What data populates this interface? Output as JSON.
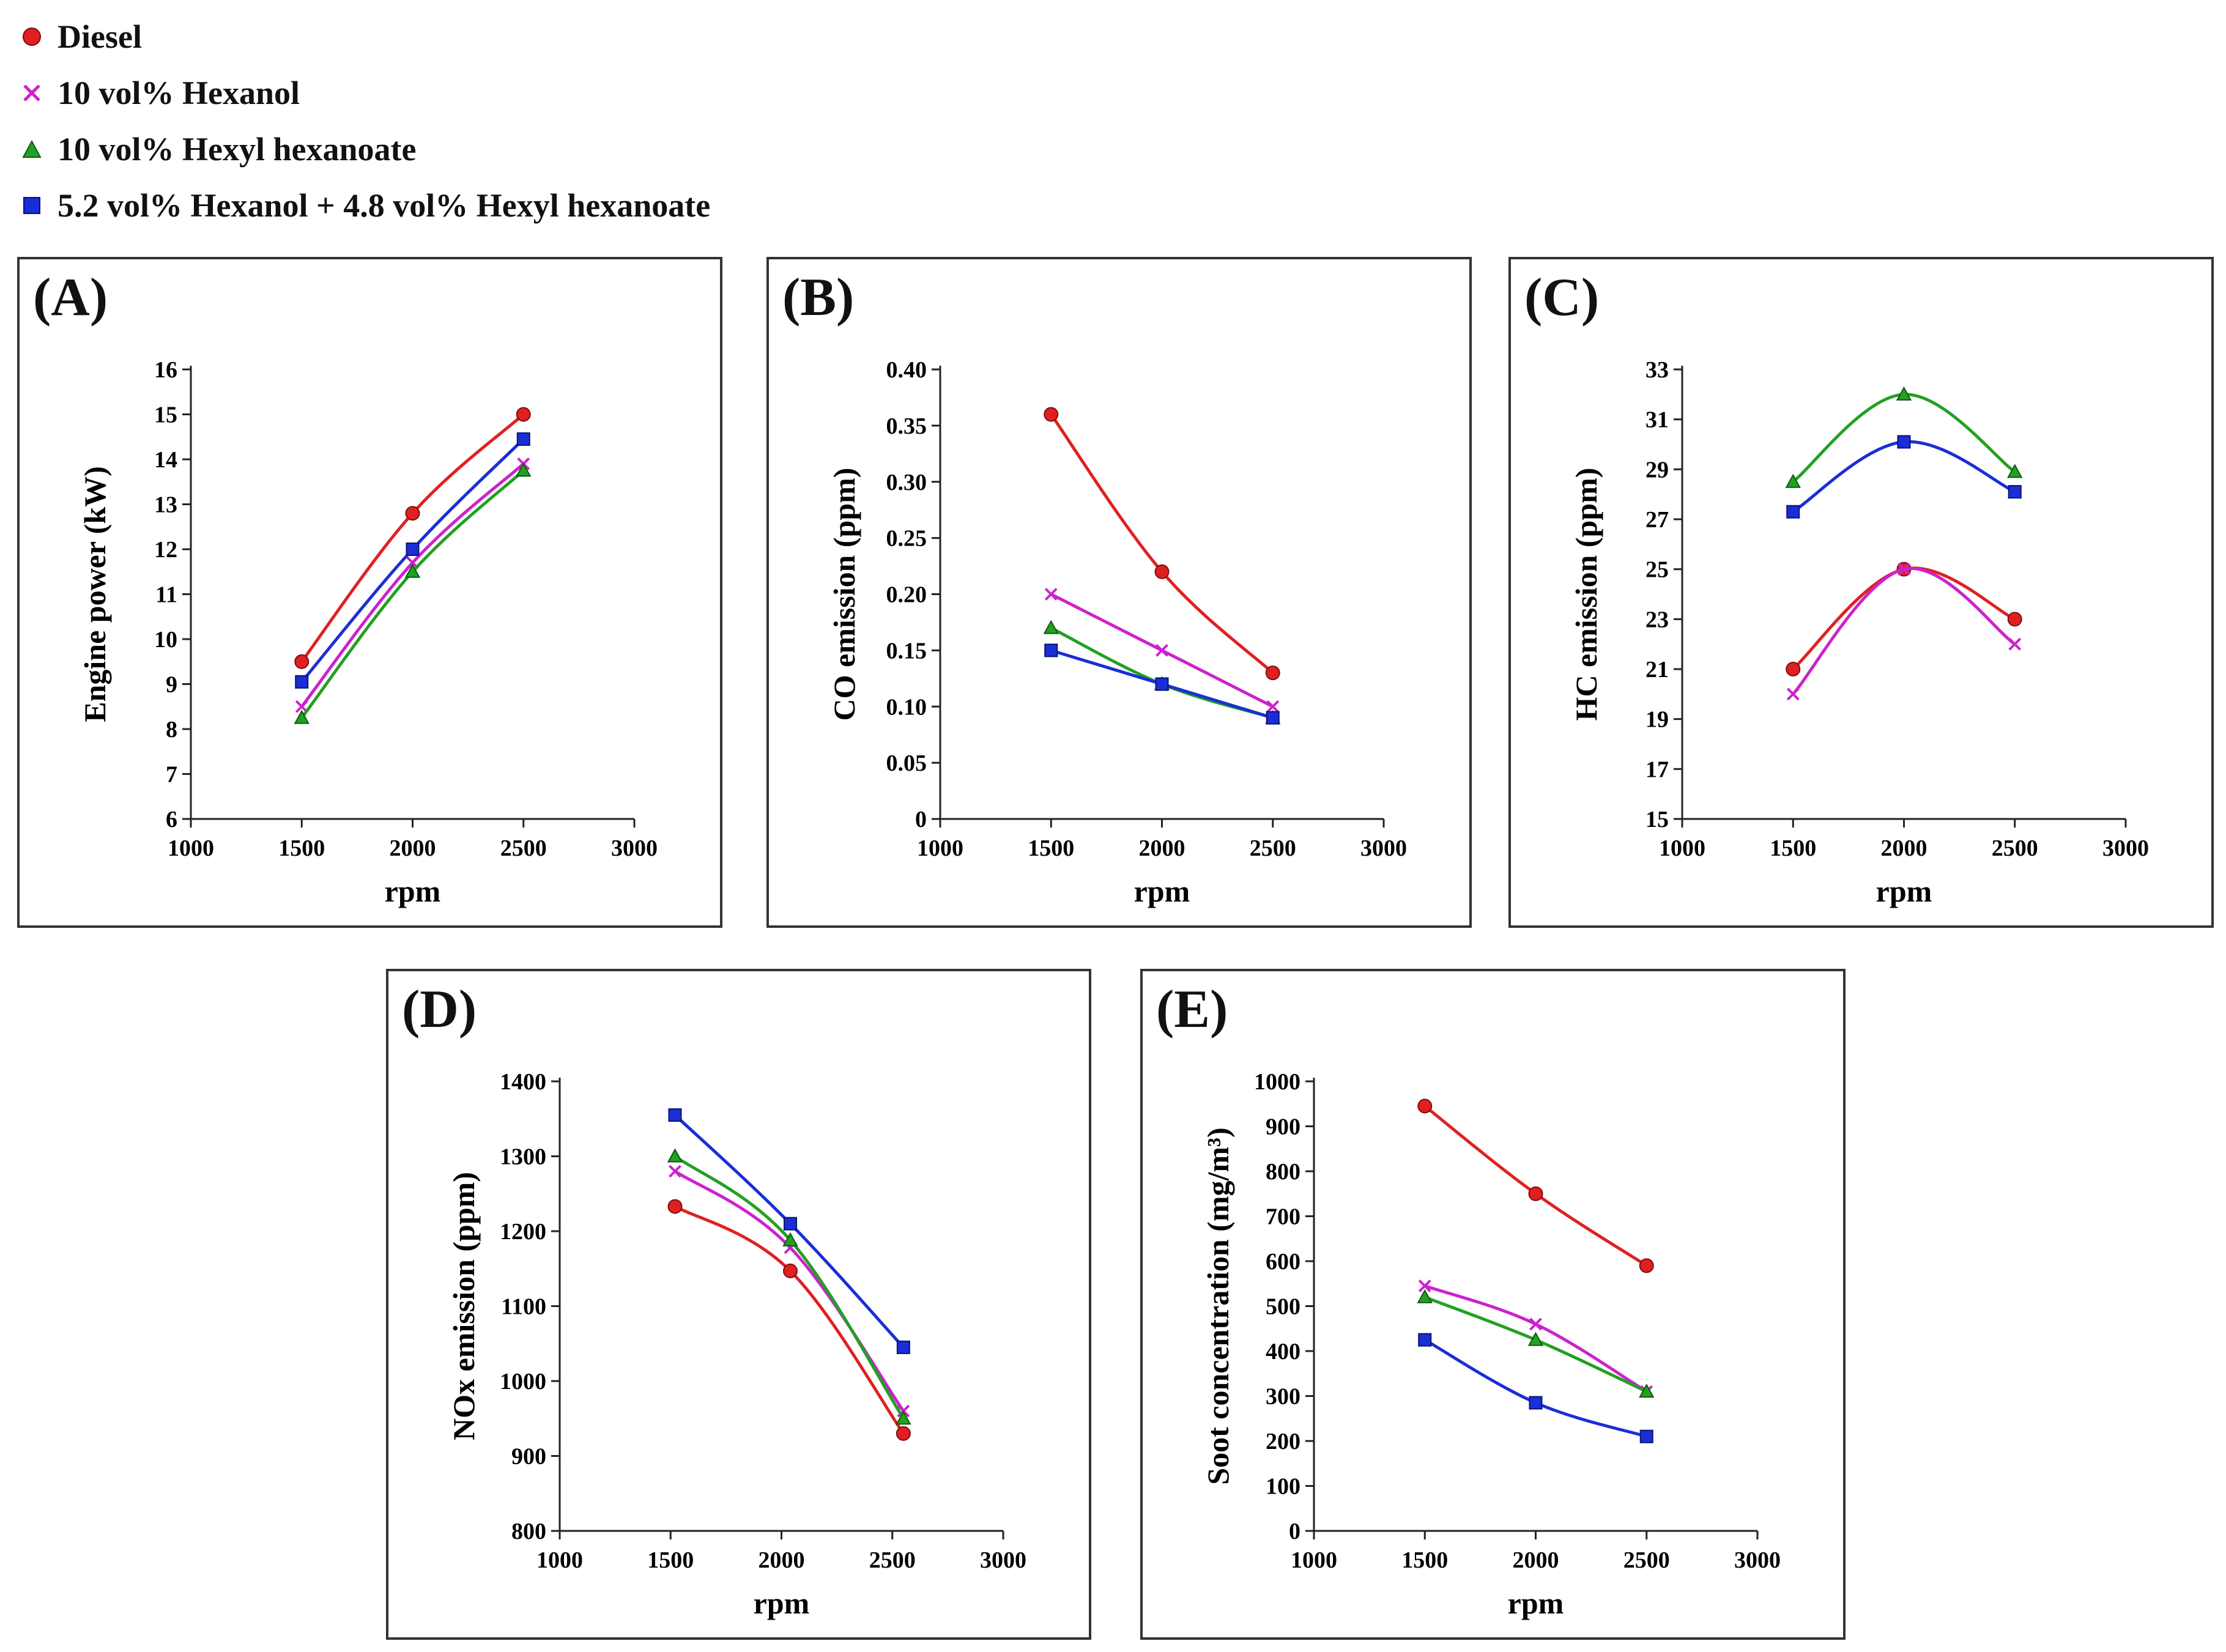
{
  "legend": [
    {
      "name": "Diesel",
      "marker": "circle",
      "color": "#e02020"
    },
    {
      "name": "10 vol% Hexanol",
      "marker": "x",
      "color": "#cc22cc"
    },
    {
      "name": "10 vol% Hexyl hexanoate",
      "marker": "triangle",
      "color": "#22a022"
    },
    {
      "name": "5.2 vol% Hexanol + 4.8 vol% Hexyl hexanoate",
      "marker": "square",
      "color": "#1a2ed6"
    }
  ],
  "chart_data": [
    {
      "id": "A",
      "panel_label": "(A)",
      "type": "line",
      "xlabel": "rpm",
      "ylabel": "Engine power (kW)",
      "xlim": [
        1000,
        3000
      ],
      "xticks": [
        1000,
        1500,
        2000,
        2500,
        3000
      ],
      "ylim": [
        6,
        16
      ],
      "yticks": [
        6,
        7,
        8,
        9,
        10,
        11,
        12,
        13,
        14,
        15,
        16
      ],
      "x": [
        1500,
        2000,
        2500
      ],
      "series": [
        {
          "name": "Diesel",
          "values": [
            9.5,
            12.8,
            15.0
          ]
        },
        {
          "name": "10 vol% Hexanol",
          "values": [
            8.5,
            11.7,
            13.9
          ]
        },
        {
          "name": "10 vol% Hexyl hexanoate",
          "values": [
            8.25,
            11.5,
            13.75
          ]
        },
        {
          "name": "5.2 vol% Hexanol + 4.8 vol% Hexyl hexanoate",
          "values": [
            9.05,
            12.0,
            14.45
          ]
        }
      ]
    },
    {
      "id": "B",
      "panel_label": "(B)",
      "type": "line",
      "xlabel": "rpm",
      "ylabel": "CO emission (ppm)",
      "xlim": [
        1000,
        3000
      ],
      "xticks": [
        1000,
        1500,
        2000,
        2500,
        3000
      ],
      "ylim": [
        0,
        0.4
      ],
      "yticks": [
        "0",
        "0.05",
        "0.10",
        "0.15",
        "0.20",
        "0.25",
        "0.30",
        "0.35",
        "0.40"
      ],
      "x": [
        1500,
        2000,
        2500
      ],
      "series": [
        {
          "name": "Diesel",
          "values": [
            0.36,
            0.22,
            0.13
          ]
        },
        {
          "name": "10 vol% Hexanol",
          "values": [
            0.2,
            0.15,
            0.1
          ]
        },
        {
          "name": "10 vol% Hexyl hexanoate",
          "values": [
            0.17,
            0.12,
            0.09
          ]
        },
        {
          "name": "5.2 vol% Hexanol + 4.8 vol% Hexyl hexanoate",
          "values": [
            0.15,
            0.12,
            0.09
          ]
        }
      ]
    },
    {
      "id": "C",
      "panel_label": "(C)",
      "type": "line",
      "xlabel": "rpm",
      "ylabel": "HC emission (ppm)",
      "xlim": [
        1000,
        3000
      ],
      "xticks": [
        1000,
        1500,
        2000,
        2500,
        3000
      ],
      "ylim": [
        15,
        33
      ],
      "yticks": [
        15,
        17,
        19,
        21,
        23,
        25,
        27,
        29,
        31,
        33
      ],
      "x": [
        1500,
        2000,
        2500
      ],
      "series": [
        {
          "name": "Diesel",
          "values": [
            21.0,
            25.0,
            23.0
          ]
        },
        {
          "name": "10 vol% Hexanol",
          "values": [
            20.0,
            25.0,
            22.0
          ]
        },
        {
          "name": "10 vol% Hexyl hexanoate",
          "values": [
            28.5,
            32.0,
            28.9
          ]
        },
        {
          "name": "5.2 vol% Hexanol + 4.8 vol% Hexyl hexanoate",
          "values": [
            27.3,
            30.1,
            28.1
          ]
        }
      ]
    },
    {
      "id": "D",
      "panel_label": "(D)",
      "type": "line",
      "xlabel": "rpm",
      "ylabel": "NOx emission (ppm)",
      "xlim": [
        1000,
        3000
      ],
      "xticks": [
        1000,
        1500,
        2000,
        2500,
        3000
      ],
      "ylim": [
        800,
        1400
      ],
      "yticks": [
        800,
        900,
        1000,
        1100,
        1200,
        1300,
        1400
      ],
      "x": [
        1520,
        2040,
        2550
      ],
      "series": [
        {
          "name": "Diesel",
          "values": [
            1233,
            1147,
            930
          ]
        },
        {
          "name": "10 vol% Hexanol",
          "values": [
            1280,
            1178,
            960
          ]
        },
        {
          "name": "10 vol% Hexyl hexanoate",
          "values": [
            1300,
            1188,
            950
          ]
        },
        {
          "name": "5.2 vol% Hexanol + 4.8 vol% Hexyl hexanoate",
          "values": [
            1355,
            1210,
            1045
          ]
        }
      ]
    },
    {
      "id": "E",
      "panel_label": "(E)",
      "type": "line",
      "xlabel": "rpm",
      "ylabel": "Soot concentration (mg/m³)",
      "xlim": [
        1000,
        3000
      ],
      "xticks": [
        1000,
        1500,
        2000,
        2500,
        3000
      ],
      "ylim": [
        0,
        1000
      ],
      "yticks": [
        0,
        100,
        200,
        300,
        400,
        500,
        600,
        700,
        800,
        900,
        1000
      ],
      "x": [
        1500,
        2000,
        2500
      ],
      "series": [
        {
          "name": "Diesel",
          "values": [
            945,
            750,
            590
          ]
        },
        {
          "name": "10 vol% Hexanol",
          "values": [
            545,
            460,
            310
          ]
        },
        {
          "name": "10 vol% Hexyl hexanoate",
          "values": [
            520,
            425,
            310
          ]
        },
        {
          "name": "5.2 vol% Hexanol + 4.8 vol% Hexyl hexanoate",
          "values": [
            425,
            285,
            210
          ]
        }
      ]
    }
  ]
}
